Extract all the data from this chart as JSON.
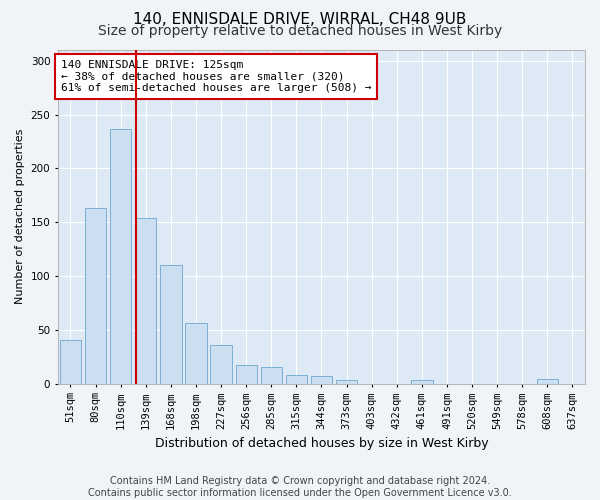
{
  "title": "140, ENNISDALE DRIVE, WIRRAL, CH48 9UB",
  "subtitle": "Size of property relative to detached houses in West Kirby",
  "xlabel": "Distribution of detached houses by size in West Kirby",
  "ylabel": "Number of detached properties",
  "bar_color": "#ccdff0",
  "bar_edge_color": "#7bafd4",
  "background_color": "#ddeaf6",
  "fig_background": "#f0f4f8",
  "grid_color": "#ffffff",
  "categories": [
    "51sqm",
    "80sqm",
    "110sqm",
    "139sqm",
    "168sqm",
    "198sqm",
    "227sqm",
    "256sqm",
    "285sqm",
    "315sqm",
    "344sqm",
    "373sqm",
    "403sqm",
    "432sqm",
    "461sqm",
    "491sqm",
    "520sqm",
    "549sqm",
    "578sqm",
    "608sqm",
    "637sqm"
  ],
  "values": [
    40,
    163,
    237,
    154,
    110,
    56,
    36,
    17,
    15,
    8,
    7,
    3,
    0,
    0,
    3,
    0,
    0,
    0,
    0,
    4,
    0
  ],
  "vline_x": 2.62,
  "vline_color": "#cc0000",
  "annotation_line1": "140 ENNISDALE DRIVE: 125sqm",
  "annotation_line2": "← 38% of detached houses are smaller (320)",
  "annotation_line3": "61% of semi-detached houses are larger (508) →",
  "annotation_box_color": "#ffffff",
  "annotation_box_edge": "#cc0000",
  "ylim": [
    0,
    310
  ],
  "yticks": [
    0,
    50,
    100,
    150,
    200,
    250,
    300
  ],
  "footnote_line1": "Contains HM Land Registry data © Crown copyright and database right 2024.",
  "footnote_line2": "Contains public sector information licensed under the Open Government Licence v3.0.",
  "title_fontsize": 11,
  "subtitle_fontsize": 10,
  "xlabel_fontsize": 9,
  "ylabel_fontsize": 8,
  "tick_fontsize": 7.5,
  "annotation_fontsize": 8,
  "footnote_fontsize": 7
}
